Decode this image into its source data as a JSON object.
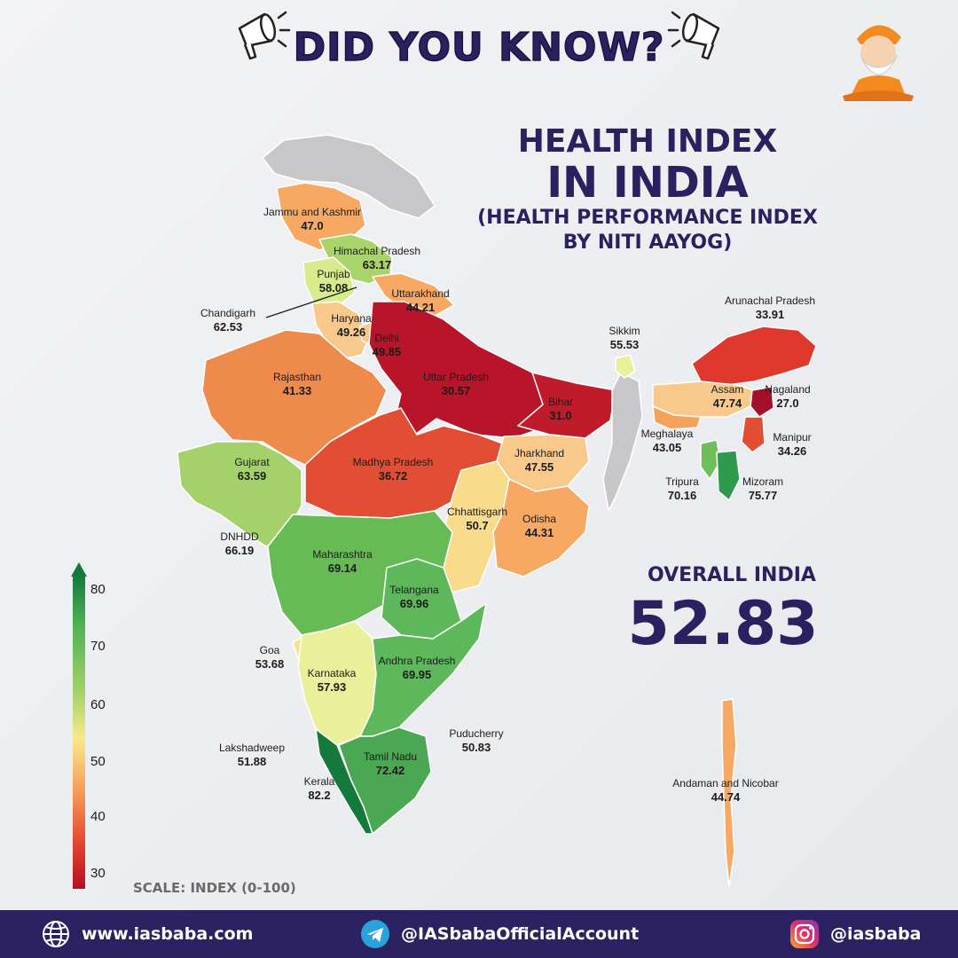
{
  "header": {
    "title": "DID YOU KNOW?"
  },
  "title": {
    "line1": "HEALTH INDEX",
    "line2": "IN INDIA",
    "line3": "(HEALTH PERFORMANCE INDEX",
    "line4": "BY NITI AAYOG)"
  },
  "overall": {
    "label": "OVERALL INDIA",
    "value": "52.83"
  },
  "states": [
    {
      "name": "Jammu and Kashmir",
      "value": "47.0"
    },
    {
      "name": "Himachal Pradesh",
      "value": "63.17"
    },
    {
      "name": "Punjab",
      "value": "58.08"
    },
    {
      "name": "Chandigarh",
      "value": "62.53"
    },
    {
      "name": "Uttarakhand",
      "value": "44.21"
    },
    {
      "name": "Haryana",
      "value": "49.26"
    },
    {
      "name": "Delhi",
      "value": "49.85"
    },
    {
      "name": "Rajasthan",
      "value": "41.33"
    },
    {
      "name": "Uttar Pradesh",
      "value": "30.57"
    },
    {
      "name": "Bihar",
      "value": "31.0"
    },
    {
      "name": "Sikkim",
      "value": "55.53"
    },
    {
      "name": "Arunachal Pradesh",
      "value": "33.91"
    },
    {
      "name": "Assam",
      "value": "47.74"
    },
    {
      "name": "Nagaland",
      "value": "27.0"
    },
    {
      "name": "Meghalaya",
      "value": "43.05"
    },
    {
      "name": "Manipur",
      "value": "34.26"
    },
    {
      "name": "Tripura",
      "value": "70.16"
    },
    {
      "name": "Mizoram",
      "value": "75.77"
    },
    {
      "name": "Gujarat",
      "value": "63.59"
    },
    {
      "name": "Madhya Pradesh",
      "value": "36.72"
    },
    {
      "name": "Jharkhand",
      "value": "47.55"
    },
    {
      "name": "Chhattisgarh",
      "value": "50.7"
    },
    {
      "name": "Odisha",
      "value": "44.31"
    },
    {
      "name": "DNHDD",
      "value": "66.19"
    },
    {
      "name": "Maharashtra",
      "value": "69.14"
    },
    {
      "name": "Telangana",
      "value": "69.96"
    },
    {
      "name": "Goa",
      "value": "53.68"
    },
    {
      "name": "Andhra Pradesh",
      "value": "69.95"
    },
    {
      "name": "Karnataka",
      "value": "57.93"
    },
    {
      "name": "Lakshadweep",
      "value": "51.88"
    },
    {
      "name": "Puducherry",
      "value": "50.83"
    },
    {
      "name": "Tamil Nadu",
      "value": "72.42"
    },
    {
      "name": "Kerala",
      "value": "82.2"
    },
    {
      "name": "Andaman and Nicobar",
      "value": "44.74"
    }
  ],
  "scale": {
    "ticks": [
      "80",
      "70",
      "60",
      "50",
      "40",
      "30"
    ],
    "caption": "SCALE: INDEX (0-100)",
    "colors": {
      "high": "#137a3c",
      "mid": "#f7e98a",
      "low": "#b30f22"
    }
  },
  "footer": {
    "website": "www.iasbaba.com",
    "telegram": "@IASbabaOfficialAccount",
    "instagram": "@iasbaba",
    "icons": [
      "globe-icon",
      "telegram-icon",
      "instagram-icon"
    ]
  }
}
